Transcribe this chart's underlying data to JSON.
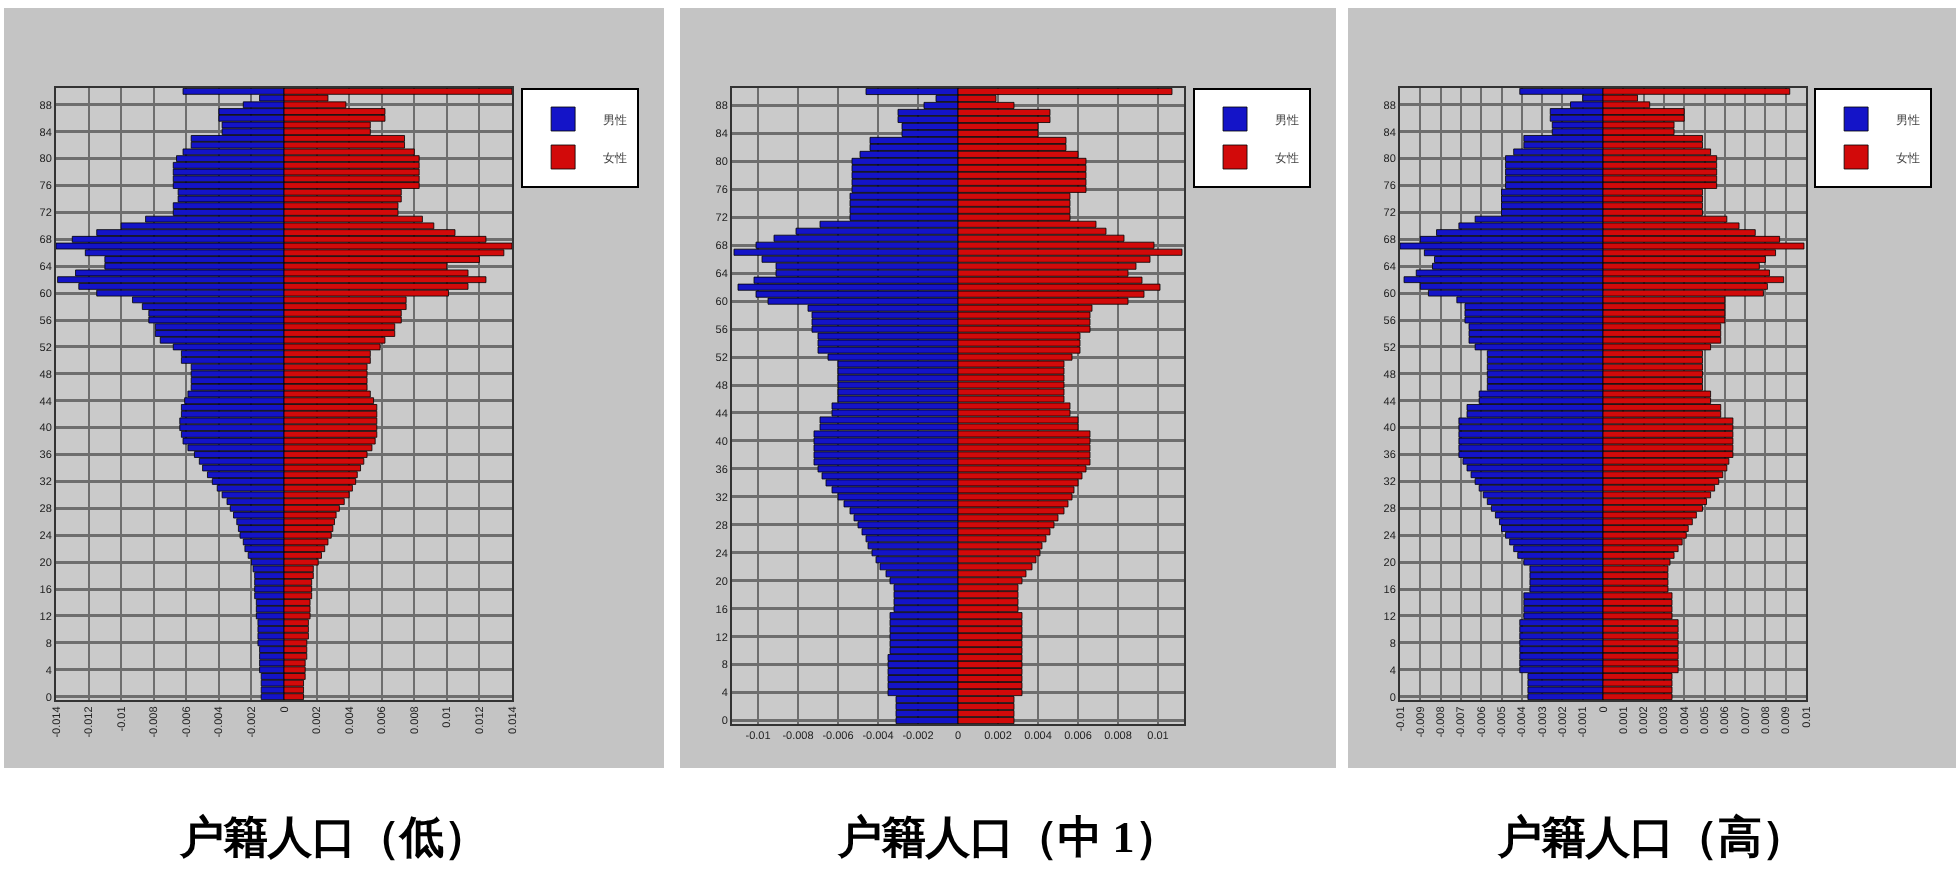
{
  "chart_data": [
    {
      "type": "bar",
      "title": "户籍人口（低）",
      "orientation": "horizontal",
      "stacked": true,
      "grid": true,
      "legend": "top right",
      "categories": [
        null,
        null,
        "88",
        null,
        null,
        null,
        "84",
        null,
        null,
        null,
        "80",
        null,
        null,
        null,
        "76",
        null,
        null,
        null,
        "72",
        null,
        null,
        null,
        "68",
        null,
        null,
        null,
        "64",
        null,
        null,
        null,
        "60",
        null,
        null,
        null,
        "56",
        null,
        null,
        null,
        "52",
        null,
        null,
        null,
        "48",
        null,
        null,
        null,
        "44",
        null,
        null,
        null,
        "40",
        null,
        null,
        null,
        "36",
        null,
        null,
        null,
        "32",
        null,
        null,
        null,
        "28",
        null,
        null,
        null,
        "24",
        null,
        null,
        null,
        "20",
        null,
        null,
        null,
        "16",
        null,
        null,
        null,
        "12",
        null,
        null,
        null,
        "8",
        null,
        null,
        null,
        "4",
        null,
        null,
        null,
        "0"
      ],
      "xlim": [
        -0.014,
        0.014
      ],
      "xticks": [
        -0.014,
        -0.012,
        -0.01,
        -0.008,
        -0.006,
        -0.004,
        -0.002,
        0,
        0.002,
        0.004,
        0.006,
        0.008,
        0.01,
        0.012,
        0.014
      ],
      "series": [
        {
          "name": "男性",
          "color": "#1414c8",
          "values": [
            -0.0062,
            -0.0015,
            -0.0025,
            -0.004,
            -0.004,
            -0.0038,
            -0.0038,
            -0.0057,
            -0.0057,
            -0.0062,
            -0.0066,
            -0.0068,
            -0.0068,
            -0.0068,
            -0.0068,
            -0.0065,
            -0.0065,
            -0.0068,
            -0.0068,
            -0.0085,
            -0.01,
            -0.0115,
            -0.013,
            -0.014,
            -0.0122,
            -0.011,
            -0.011,
            -0.0128,
            -0.0139,
            -0.0126,
            -0.0115,
            -0.0093,
            -0.0087,
            -0.0083,
            -0.0083,
            -0.0079,
            -0.0079,
            -0.0076,
            -0.0068,
            -0.0063,
            -0.0063,
            -0.0057,
            -0.0057,
            -0.0057,
            -0.0057,
            -0.0059,
            -0.0061,
            -0.0063,
            -0.0063,
            -0.0064,
            -0.0064,
            -0.0063,
            -0.0062,
            -0.0059,
            -0.0055,
            -0.0052,
            -0.005,
            -0.0047,
            -0.0044,
            -0.0041,
            -0.0038,
            -0.0035,
            -0.0033,
            -0.0031,
            -0.0029,
            -0.0028,
            -0.0027,
            -0.0025,
            -0.0024,
            -0.0022,
            -0.002,
            -0.0019,
            -0.0018,
            -0.0018,
            -0.0018,
            -0.0018,
            -0.0017,
            -0.0017,
            -0.0017,
            -0.0016,
            -0.0016,
            -0.0016,
            -0.0016,
            -0.0015,
            -0.0015,
            -0.0015,
            -0.0015,
            -0.0014,
            -0.0014,
            -0.0014,
            -0.0014
          ]
        },
        {
          "name": "女性",
          "color": "#d20a0a",
          "values": [
            0.014,
            0.0027,
            0.0038,
            0.0062,
            0.0062,
            0.0053,
            0.0053,
            0.0074,
            0.0074,
            0.008,
            0.0083,
            0.0083,
            0.0083,
            0.0083,
            0.0083,
            0.0072,
            0.0072,
            0.007,
            0.007,
            0.0085,
            0.0092,
            0.0105,
            0.0124,
            0.014,
            0.0135,
            0.012,
            0.01,
            0.0113,
            0.0124,
            0.0113,
            0.0101,
            0.0075,
            0.0075,
            0.0072,
            0.0072,
            0.0068,
            0.0068,
            0.0062,
            0.0059,
            0.0053,
            0.0053,
            0.0051,
            0.0051,
            0.0051,
            0.0051,
            0.0053,
            0.0055,
            0.0057,
            0.0057,
            0.0057,
            0.0057,
            0.0057,
            0.0056,
            0.0054,
            0.0051,
            0.0049,
            0.0047,
            0.0045,
            0.0044,
            0.0042,
            0.004,
            0.0037,
            0.0034,
            0.0032,
            0.0031,
            0.003,
            0.0029,
            0.0027,
            0.0025,
            0.0023,
            0.0021,
            0.0018,
            0.0018,
            0.0017,
            0.0017,
            0.0017,
            0.0016,
            0.0016,
            0.0016,
            0.0015,
            0.0015,
            0.0015,
            0.0014,
            0.0014,
            0.0014,
            0.0013,
            0.0013,
            0.0013,
            0.0012,
            0.0012,
            0.0012
          ]
        }
      ]
    },
    {
      "type": "bar",
      "title": "户籍人口（中 1）",
      "orientation": "horizontal",
      "stacked": true,
      "grid": true,
      "legend": "top right",
      "categories": [
        null,
        null,
        "88",
        null,
        null,
        null,
        "84",
        null,
        null,
        null,
        "80",
        null,
        null,
        null,
        "76",
        null,
        null,
        null,
        "72",
        null,
        null,
        null,
        "68",
        null,
        null,
        null,
        "64",
        null,
        null,
        null,
        "60",
        null,
        null,
        null,
        "56",
        null,
        null,
        null,
        "52",
        null,
        null,
        null,
        "48",
        null,
        null,
        null,
        "44",
        null,
        null,
        null,
        "40",
        null,
        null,
        null,
        "36",
        null,
        null,
        null,
        "32",
        null,
        null,
        null,
        "28",
        null,
        null,
        null,
        "24",
        null,
        null,
        null,
        "20",
        null,
        null,
        null,
        "16",
        null,
        null,
        null,
        "12",
        null,
        null,
        null,
        "8",
        null,
        null,
        null,
        "4",
        null,
        null,
        null,
        "0"
      ],
      "xlim": [
        -0.0113,
        0.0113
      ],
      "xticks": [
        -0.01,
        -0.008,
        -0.006,
        -0.004,
        -0.002,
        0,
        0.002,
        0.004,
        0.006,
        0.008,
        0.01
      ],
      "series": [
        {
          "name": "男性",
          "color": "#1414c8",
          "values": [
            -0.0046,
            -0.0011,
            -0.0017,
            -0.003,
            -0.003,
            -0.0028,
            -0.0028,
            -0.0044,
            -0.0044,
            -0.0049,
            -0.0053,
            -0.0053,
            -0.0053,
            -0.0053,
            -0.0053,
            -0.0054,
            -0.0054,
            -0.0054,
            -0.0054,
            -0.0069,
            -0.0081,
            -0.0092,
            -0.0101,
            -0.0112,
            -0.0098,
            -0.0091,
            -0.0091,
            -0.0102,
            -0.011,
            -0.0101,
            -0.0095,
            -0.0075,
            -0.0073,
            -0.0073,
            -0.0073,
            -0.007,
            -0.007,
            -0.007,
            -0.0065,
            -0.006,
            -0.006,
            -0.006,
            -0.006,
            -0.006,
            -0.006,
            -0.0063,
            -0.0063,
            -0.0069,
            -0.0069,
            -0.0072,
            -0.0072,
            -0.0072,
            -0.0072,
            -0.0072,
            -0.007,
            -0.0068,
            -0.0066,
            -0.0063,
            -0.006,
            -0.0057,
            -0.0054,
            -0.0052,
            -0.005,
            -0.0048,
            -0.0046,
            -0.0045,
            -0.0043,
            -0.0041,
            -0.0039,
            -0.0036,
            -0.0034,
            -0.0032,
            -0.0032,
            -0.0032,
            -0.0032,
            -0.0034,
            -0.0034,
            -0.0034,
            -0.0034,
            -0.0034,
            -0.0034,
            -0.0035,
            -0.0035,
            -0.0035,
            -0.0035,
            -0.0035,
            -0.0035,
            -0.0031,
            -0.0031,
            -0.0031,
            -0.0031
          ]
        },
        {
          "name": "女性",
          "color": "#d20a0a",
          "values": [
            0.0107,
            0.0019,
            0.0028,
            0.0046,
            0.0046,
            0.004,
            0.004,
            0.0054,
            0.0054,
            0.006,
            0.0064,
            0.0064,
            0.0064,
            0.0064,
            0.0064,
            0.0056,
            0.0056,
            0.0056,
            0.0056,
            0.0069,
            0.0074,
            0.0083,
            0.0098,
            0.0112,
            0.0096,
            0.0089,
            0.0085,
            0.0092,
            0.0101,
            0.0093,
            0.0085,
            0.0067,
            0.0066,
            0.0066,
            0.0066,
            0.0061,
            0.0061,
            0.0061,
            0.0057,
            0.0053,
            0.0053,
            0.0053,
            0.0053,
            0.0053,
            0.0053,
            0.0056,
            0.0056,
            0.006,
            0.006,
            0.0066,
            0.0066,
            0.0066,
            0.0066,
            0.0066,
            0.0064,
            0.0062,
            0.006,
            0.0058,
            0.0057,
            0.0055,
            0.0053,
            0.005,
            0.0048,
            0.0046,
            0.0044,
            0.0042,
            0.0041,
            0.0039,
            0.0037,
            0.0034,
            0.0032,
            0.003,
            0.003,
            0.003,
            0.003,
            0.0032,
            0.0032,
            0.0032,
            0.0032,
            0.0032,
            0.0032,
            0.0032,
            0.0032,
            0.0032,
            0.0032,
            0.0032,
            0.0032,
            0.0028,
            0.0028,
            0.0028,
            0.0028
          ]
        }
      ]
    },
    {
      "type": "bar",
      "title": "户籍人口（高）",
      "orientation": "horizontal",
      "stacked": true,
      "grid": true,
      "legend": "top right",
      "categories": [
        null,
        null,
        "88",
        null,
        null,
        null,
        "84",
        null,
        null,
        null,
        "80",
        null,
        null,
        null,
        "76",
        null,
        null,
        null,
        "72",
        null,
        null,
        null,
        "68",
        null,
        null,
        null,
        "64",
        null,
        null,
        null,
        "60",
        null,
        null,
        null,
        "56",
        null,
        null,
        null,
        "52",
        null,
        null,
        null,
        "48",
        null,
        null,
        null,
        "44",
        null,
        null,
        null,
        "40",
        null,
        null,
        null,
        "36",
        null,
        null,
        null,
        "32",
        null,
        null,
        null,
        "28",
        null,
        null,
        null,
        "24",
        null,
        null,
        null,
        "20",
        null,
        null,
        null,
        "16",
        null,
        null,
        null,
        "12",
        null,
        null,
        null,
        "8",
        null,
        null,
        null,
        "4",
        null,
        null,
        null,
        "0"
      ],
      "xlim": [
        -0.01,
        0.01
      ],
      "xticks": [
        -0.01,
        -0.009,
        -0.008,
        -0.007,
        -0.006,
        -0.005,
        -0.004,
        -0.003,
        -0.002,
        -0.001,
        0,
        0.001,
        0.002,
        0.003,
        0.004,
        0.005,
        0.006,
        0.007,
        0.008,
        0.009,
        0.01
      ],
      "series": [
        {
          "name": "男性",
          "color": "#1414c8",
          "values": [
            -0.0041,
            -0.001,
            -0.0016,
            -0.0026,
            -0.0026,
            -0.0025,
            -0.0025,
            -0.0039,
            -0.0039,
            -0.0044,
            -0.0048,
            -0.0048,
            -0.0048,
            -0.0048,
            -0.0048,
            -0.005,
            -0.005,
            -0.005,
            -0.005,
            -0.0063,
            -0.0071,
            -0.0082,
            -0.009,
            -0.01,
            -0.0088,
            -0.0083,
            -0.0084,
            -0.0092,
            -0.0098,
            -0.009,
            -0.0086,
            -0.0072,
            -0.0068,
            -0.0068,
            -0.0068,
            -0.0066,
            -0.0066,
            -0.0066,
            -0.0063,
            -0.0057,
            -0.0057,
            -0.0057,
            -0.0057,
            -0.0057,
            -0.0057,
            -0.0061,
            -0.0061,
            -0.0067,
            -0.0067,
            -0.0071,
            -0.0071,
            -0.0071,
            -0.0071,
            -0.0071,
            -0.0071,
            -0.0069,
            -0.0067,
            -0.0065,
            -0.0063,
            -0.0061,
            -0.0059,
            -0.0057,
            -0.0055,
            -0.0053,
            -0.0051,
            -0.005,
            -0.0048,
            -0.0046,
            -0.0044,
            -0.0042,
            -0.0039,
            -0.0036,
            -0.0036,
            -0.0036,
            -0.0036,
            -0.0039,
            -0.0039,
            -0.0039,
            -0.0039,
            -0.0041,
            -0.0041,
            -0.0041,
            -0.0041,
            -0.0041,
            -0.0041,
            -0.0041,
            -0.0041,
            -0.0037,
            -0.0037,
            -0.0037,
            -0.0037
          ]
        },
        {
          "name": "女性",
          "color": "#d20a0a",
          "values": [
            0.0092,
            0.0017,
            0.0023,
            0.004,
            0.004,
            0.0035,
            0.0035,
            0.0049,
            0.0049,
            0.0053,
            0.0056,
            0.0056,
            0.0056,
            0.0056,
            0.0056,
            0.0049,
            0.0049,
            0.0049,
            0.0049,
            0.0061,
            0.0067,
            0.0075,
            0.0087,
            0.0099,
            0.0085,
            0.008,
            0.0077,
            0.0082,
            0.0089,
            0.0081,
            0.0079,
            0.006,
            0.006,
            0.006,
            0.006,
            0.0058,
            0.0058,
            0.0058,
            0.0053,
            0.0049,
            0.0049,
            0.0049,
            0.0049,
            0.0049,
            0.0049,
            0.0053,
            0.0053,
            0.0058,
            0.0058,
            0.0064,
            0.0064,
            0.0064,
            0.0064,
            0.0064,
            0.0064,
            0.0062,
            0.0061,
            0.0059,
            0.0057,
            0.0055,
            0.0053,
            0.0051,
            0.0049,
            0.0046,
            0.0044,
            0.0042,
            0.0041,
            0.0039,
            0.0037,
            0.0035,
            0.0033,
            0.0032,
            0.0032,
            0.0032,
            0.0032,
            0.0034,
            0.0034,
            0.0034,
            0.0034,
            0.0037,
            0.0037,
            0.0037,
            0.0037,
            0.0037,
            0.0037,
            0.0037,
            0.0037,
            0.0034,
            0.0034,
            0.0034,
            0.0034
          ]
        }
      ]
    }
  ]
}
